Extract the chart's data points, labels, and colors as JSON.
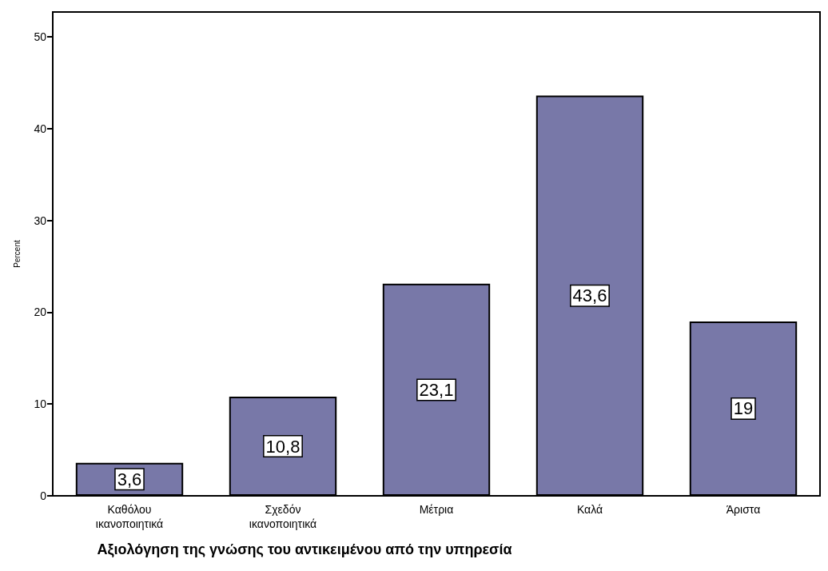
{
  "chart_data": {
    "type": "bar",
    "xlabel": "Αξιολόγηση της γνώσης του αντικειμένου από την υπηρεσία",
    "ylabel": "Percent",
    "categories": [
      "Καθόλου ικανοποιητικά",
      "Σχεδόν ικανοποιητικά",
      "Μέτρια",
      "Καλά",
      "Άριστα"
    ],
    "values": [
      3.6,
      10.8,
      23.1,
      43.6,
      19
    ],
    "value_labels": [
      "3,6",
      "10,8",
      "23,1",
      "43,6",
      "19"
    ],
    "color": "#7878a8",
    "ylim": [
      0,
      52.7
    ],
    "yticks": [
      0,
      10,
      20,
      30,
      40,
      50
    ],
    "grid": false
  }
}
